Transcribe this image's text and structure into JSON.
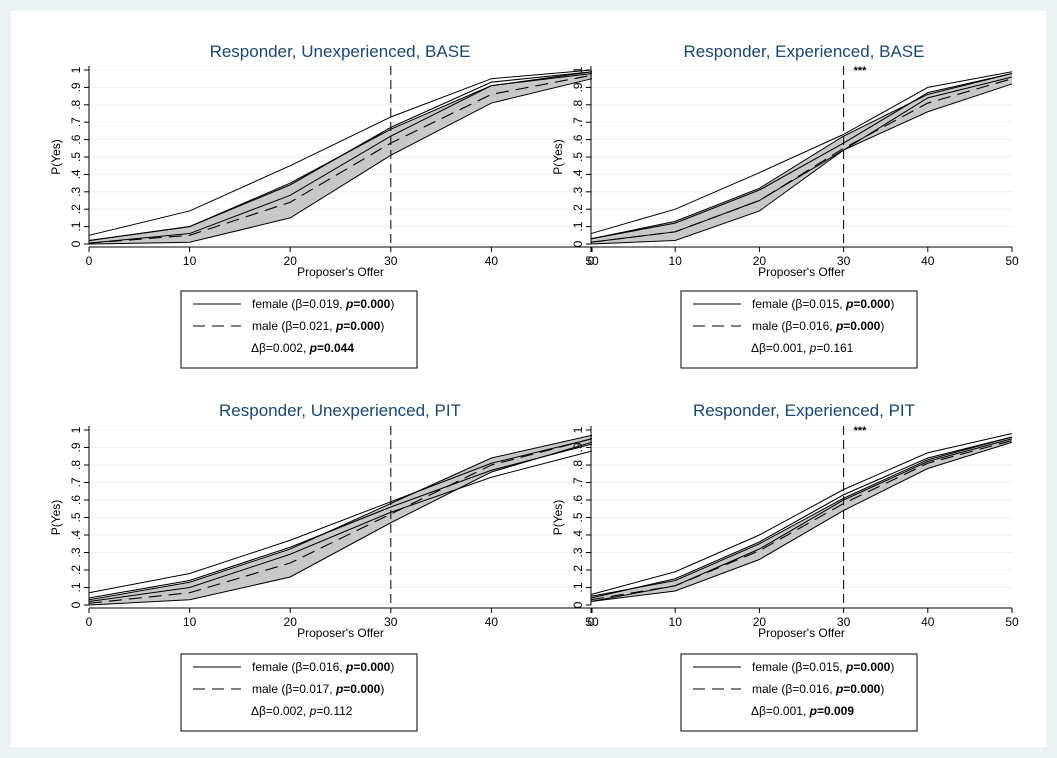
{
  "x_label": "Proposer's Offer",
  "y_label": "P(Yes)",
  "chart_data": [
    {
      "type": "line",
      "title": "Responder, Unexperienced, BASE",
      "xlabel": "Proposer's Offer",
      "ylabel": "P(Yes)",
      "xlim": [
        0,
        50
      ],
      "ylim": [
        0,
        1
      ],
      "x_ticks": [
        "0",
        "10",
        "20",
        "30",
        "40",
        "50"
      ],
      "y_ticks": [
        "0",
        ".1",
        ".2",
        ".3",
        ".4",
        ".5",
        ".6",
        ".7",
        ".8",
        ".9",
        "1"
      ],
      "vline_x": 30,
      "annotation": "",
      "x": [
        0,
        10,
        20,
        30,
        40,
        50
      ],
      "series": [
        {
          "name": "female",
          "style": "solid",
          "values": [
            0.02,
            0.1,
            0.34,
            0.67,
            0.93,
            0.99
          ],
          "lower": [
            0.005,
            0.06,
            0.28,
            0.62,
            0.91,
            0.98
          ],
          "upper": [
            0.05,
            0.19,
            0.45,
            0.73,
            0.95,
            1.0
          ]
        },
        {
          "name": "male",
          "style": "dashed",
          "values": [
            0.005,
            0.05,
            0.24,
            0.58,
            0.86,
            0.97
          ],
          "lower": [
            0.0,
            0.01,
            0.15,
            0.51,
            0.81,
            0.95
          ],
          "upper": [
            0.02,
            0.1,
            0.35,
            0.66,
            0.91,
            0.99
          ]
        }
      ],
      "legend": {
        "female": {
          "text": "female (β=0.019, ",
          "p": "p",
          "pval": "=0.000",
          "close": ")",
          "bold": true
        },
        "male": {
          "text": "male (β=0.021, ",
          "p": "p",
          "pval": "=0.000",
          "close": ")",
          "bold": true
        },
        "diff": {
          "text": "Δβ=0.002, ",
          "p": "p",
          "pval": "=0.044",
          "close": "",
          "bold": true
        }
      }
    },
    {
      "type": "line",
      "title": "Responder, Experienced, BASE",
      "xlabel": "Proposer's Offer",
      "ylabel": "P(Yes)",
      "xlim": [
        0,
        50
      ],
      "ylim": [
        0,
        1
      ],
      "x_ticks": [
        "0",
        "10",
        "20",
        "30",
        "40",
        "50"
      ],
      "y_ticks": [
        "0",
        ".1",
        ".2",
        ".3",
        ".4",
        ".5",
        ".6",
        ".7",
        ".8",
        ".9",
        "1"
      ],
      "vline_x": 30,
      "annotation": "***",
      "x": [
        0,
        10,
        20,
        30,
        40,
        50
      ],
      "series": [
        {
          "name": "female",
          "style": "solid",
          "values": [
            0.03,
            0.12,
            0.31,
            0.58,
            0.87,
            0.98
          ],
          "lower": [
            0.01,
            0.07,
            0.25,
            0.54,
            0.84,
            0.96
          ],
          "upper": [
            0.06,
            0.2,
            0.41,
            0.63,
            0.9,
            0.99
          ]
        },
        {
          "name": "male",
          "style": "dashed",
          "values": [
            0.01,
            0.07,
            0.25,
            0.55,
            0.81,
            0.95
          ],
          "lower": [
            0.0,
            0.02,
            0.19,
            0.54,
            0.76,
            0.92
          ],
          "upper": [
            0.03,
            0.13,
            0.32,
            0.62,
            0.86,
            0.98
          ]
        }
      ],
      "legend": {
        "female": {
          "text": "female (β=0.015, ",
          "p": "p",
          "pval": "=0.000",
          "close": ")",
          "bold": true
        },
        "male": {
          "text": "male (β=0.016, ",
          "p": "p",
          "pval": "=0.000",
          "close": ")",
          "bold": true
        },
        "diff": {
          "text": "Δβ=0.001, ",
          "p": "p",
          "pval": "=0.161",
          "close": "",
          "bold": false
        }
      }
    },
    {
      "type": "line",
      "title": "Responder, Unexperienced, PIT",
      "xlabel": "Proposer's Offer",
      "ylabel": "P(Yes)",
      "xlim": [
        0,
        50
      ],
      "ylim": [
        0,
        1
      ],
      "x_ticks": [
        "0",
        "10",
        "20",
        "30",
        "40",
        "50"
      ],
      "y_ticks": [
        "0",
        ".1",
        ".2",
        ".3",
        ".4",
        ".5",
        ".6",
        ".7",
        ".8",
        ".9",
        "1"
      ],
      "vline_x": 30,
      "annotation": "",
      "x": [
        0,
        10,
        20,
        30,
        40,
        50
      ],
      "series": [
        {
          "name": "female",
          "style": "solid",
          "values": [
            0.04,
            0.14,
            0.33,
            0.56,
            0.77,
            0.92
          ],
          "lower": [
            0.02,
            0.1,
            0.29,
            0.53,
            0.73,
            0.88
          ],
          "upper": [
            0.07,
            0.18,
            0.37,
            0.59,
            0.81,
            0.95
          ]
        },
        {
          "name": "male",
          "style": "dashed",
          "values": [
            0.01,
            0.07,
            0.24,
            0.52,
            0.8,
            0.95
          ],
          "lower": [
            0.0,
            0.03,
            0.16,
            0.47,
            0.76,
            0.93
          ],
          "upper": [
            0.03,
            0.13,
            0.32,
            0.58,
            0.84,
            0.97
          ]
        }
      ],
      "legend": {
        "female": {
          "text": "female (β=0.016, ",
          "p": "p",
          "pval": "=0.000",
          "close": ")",
          "bold": true
        },
        "male": {
          "text": "male (β=0.017, ",
          "p": "p",
          "pval": "=0.000",
          "close": ")",
          "bold": true
        },
        "diff": {
          "text": "Δβ=0.002, ",
          "p": "p",
          "pval": "=0.112",
          "close": "",
          "bold": false
        }
      }
    },
    {
      "type": "line",
      "title": "Responder, Experienced, PIT",
      "xlabel": "Proposer's Offer",
      "ylabel": "P(Yes)",
      "xlim": [
        0,
        50
      ],
      "ylim": [
        0,
        1
      ],
      "x_ticks": [
        "0",
        "10",
        "20",
        "30",
        "40",
        "50"
      ],
      "y_ticks": [
        "0",
        ".1",
        ".2",
        ".3",
        ".4",
        ".5",
        ".6",
        ".7",
        ".8",
        ".9",
        "1"
      ],
      "vline_x": 30,
      "annotation": "***",
      "x": [
        0,
        10,
        20,
        30,
        40,
        50
      ],
      "series": [
        {
          "name": "female",
          "style": "solid",
          "values": [
            0.04,
            0.15,
            0.36,
            0.63,
            0.84,
            0.96
          ],
          "lower": [
            0.02,
            0.11,
            0.32,
            0.6,
            0.82,
            0.95
          ],
          "upper": [
            0.06,
            0.19,
            0.4,
            0.66,
            0.87,
            0.98
          ]
        },
        {
          "name": "male",
          "style": "dashed",
          "values": [
            0.03,
            0.11,
            0.31,
            0.58,
            0.81,
            0.94
          ],
          "lower": [
            0.02,
            0.08,
            0.26,
            0.54,
            0.78,
            0.93
          ],
          "upper": [
            0.05,
            0.14,
            0.35,
            0.61,
            0.83,
            0.96
          ]
        }
      ],
      "legend": {
        "female": {
          "text": "female (β=0.015, ",
          "p": "p",
          "pval": "=0.000",
          "close": ")",
          "bold": true
        },
        "male": {
          "text": "male (β=0.016, ",
          "p": "p",
          "pval": "=0.000",
          "close": ")",
          "bold": true
        },
        "diff": {
          "text": "Δβ=0.001, ",
          "p": "p",
          "pval": "=0.009",
          "close": "",
          "bold": true
        }
      }
    }
  ]
}
